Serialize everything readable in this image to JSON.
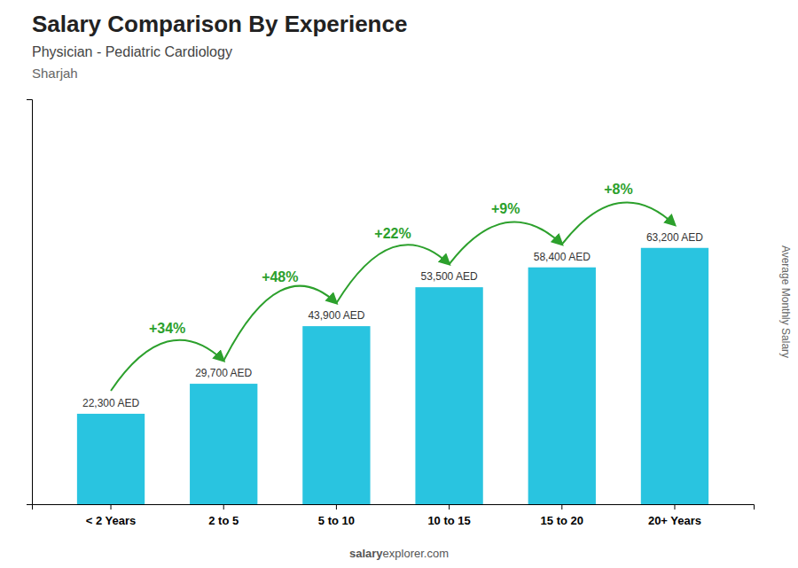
{
  "chart_data": {
    "type": "bar",
    "title": "Salary Comparison By Experience",
    "subtitle": [
      "Physician - Pediatric Cardiology",
      "Sharjah"
    ],
    "y_label": "Average Monthly Salary",
    "footer": [
      "salary",
      "explorer.com"
    ],
    "categories": [
      "< 2 Years",
      "2 to 5",
      "5 to 10",
      "10 to 15",
      "15 to 20",
      "20+ Years"
    ],
    "values": [
      22300,
      29700,
      43900,
      53500,
      58400,
      63200
    ],
    "value_labels": [
      "22,300 AED",
      "29,700 AED",
      "43,900 AED",
      "53,500 AED",
      "58,400 AED",
      "63,200 AED"
    ],
    "annotations": [
      "+34%",
      "+48%",
      "+22%",
      "+9%",
      "+8%"
    ],
    "color": "#29c4e0",
    "ylim": [
      0,
      99856
    ],
    "grid": false,
    "data_labels": true,
    "tick_labels": "x"
  }
}
